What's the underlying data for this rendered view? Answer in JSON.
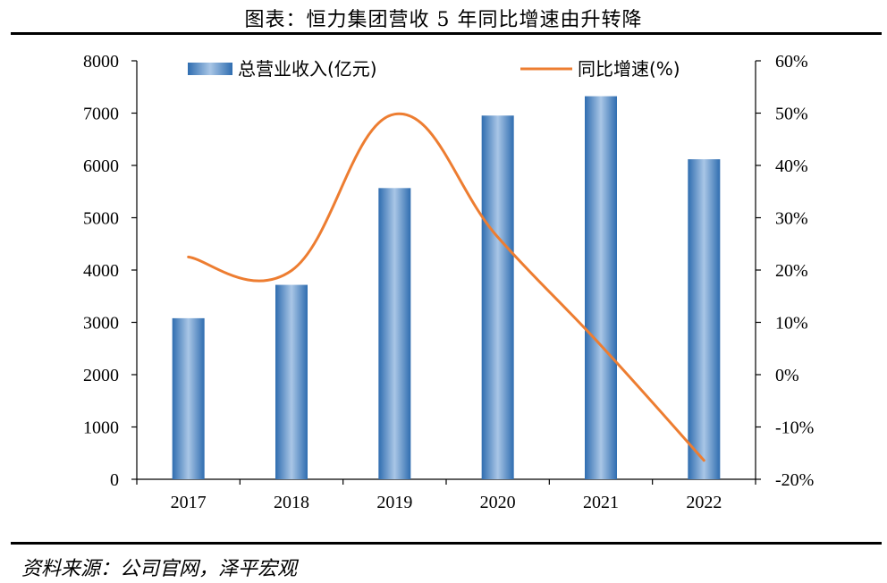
{
  "header": {
    "title": "图表：恒力集团营收 5 年同比增速由升转降"
  },
  "footer": {
    "source": "资料来源：公司官网，泽平宏观"
  },
  "colors": {
    "bar": "#3f7fc0",
    "line": "#ed7d31"
  },
  "chart_data": {
    "type": "bar",
    "categories": [
      "2017",
      "2018",
      "2019",
      "2020",
      "2021",
      "2022"
    ],
    "series": [
      {
        "name": "总营业收入(亿元)",
        "type": "bar",
        "axis": "left",
        "values": [
          3079,
          3717,
          5567,
          6953,
          7323,
          6118
        ]
      },
      {
        "name": "同比增速(%)",
        "type": "line",
        "axis": "right",
        "smooth": true,
        "values": [
          22.5,
          19.9,
          49.8,
          26.3,
          5.6,
          -16.4
        ]
      }
    ],
    "y_left": {
      "ylim": [
        0,
        8000
      ],
      "ticks": [
        "0",
        "1000",
        "2000",
        "3000",
        "4000",
        "5000",
        "6000",
        "7000",
        "8000"
      ]
    },
    "y_right": {
      "ylim": [
        -20,
        60
      ],
      "ticks": [
        "-20%",
        "-10%",
        "0%",
        "10%",
        "20%",
        "30%",
        "40%",
        "50%",
        "60%"
      ]
    },
    "grid": false,
    "legend_position": "top"
  }
}
